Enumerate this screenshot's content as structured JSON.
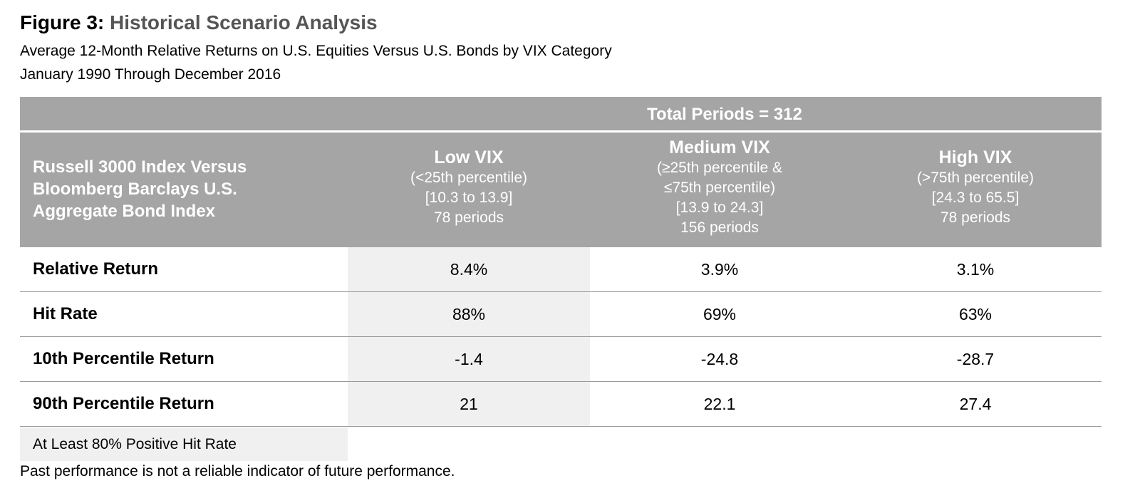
{
  "figure": {
    "label": "Figure 3:",
    "title": "Historical Scenario Analysis",
    "subtitle_1": "Average 12-Month Relative Returns on U.S. Equities Versus U.S. Bonds by VIX Category",
    "subtitle_2": "January 1990 Through December 2016"
  },
  "table": {
    "total_header": "Total Periods = 312",
    "row_header_lines": [
      "Russell 3000 Index Versus",
      "Bloomberg Barclays U.S.",
      "Aggregate Bond Index"
    ],
    "columns": [
      {
        "name": "Low VIX",
        "lines": [
          "(<25th percentile)",
          "[10.3 to 13.9]",
          "78 periods"
        ]
      },
      {
        "name": "Medium VIX",
        "lines": [
          "(≥25th percentile &",
          "≤75th percentile)",
          "[13.9 to 24.3]",
          "156 periods"
        ]
      },
      {
        "name": "High VIX",
        "lines": [
          "(>75th percentile)",
          "[24.3 to 65.5]",
          "78 periods"
        ]
      }
    ],
    "rows": [
      {
        "label": "Relative Return",
        "values": [
          "8.4%",
          "3.9%",
          "3.1%"
        ]
      },
      {
        "label": "Hit Rate",
        "values": [
          "88%",
          "69%",
          "63%"
        ]
      },
      {
        "label": "10th Percentile Return",
        "values": [
          "-1.4",
          "-24.8",
          "-28.7"
        ]
      },
      {
        "label": "90th Percentile Return",
        "values": [
          "21",
          "22.1",
          "27.4"
        ]
      }
    ],
    "highlight_color": "#f0f0f0",
    "header_color": "#a5a5a5"
  },
  "legend": {
    "text": "At Least 80% Positive Hit Rate"
  },
  "footnote": "Past performance is not a reliable indicator of future performance."
}
